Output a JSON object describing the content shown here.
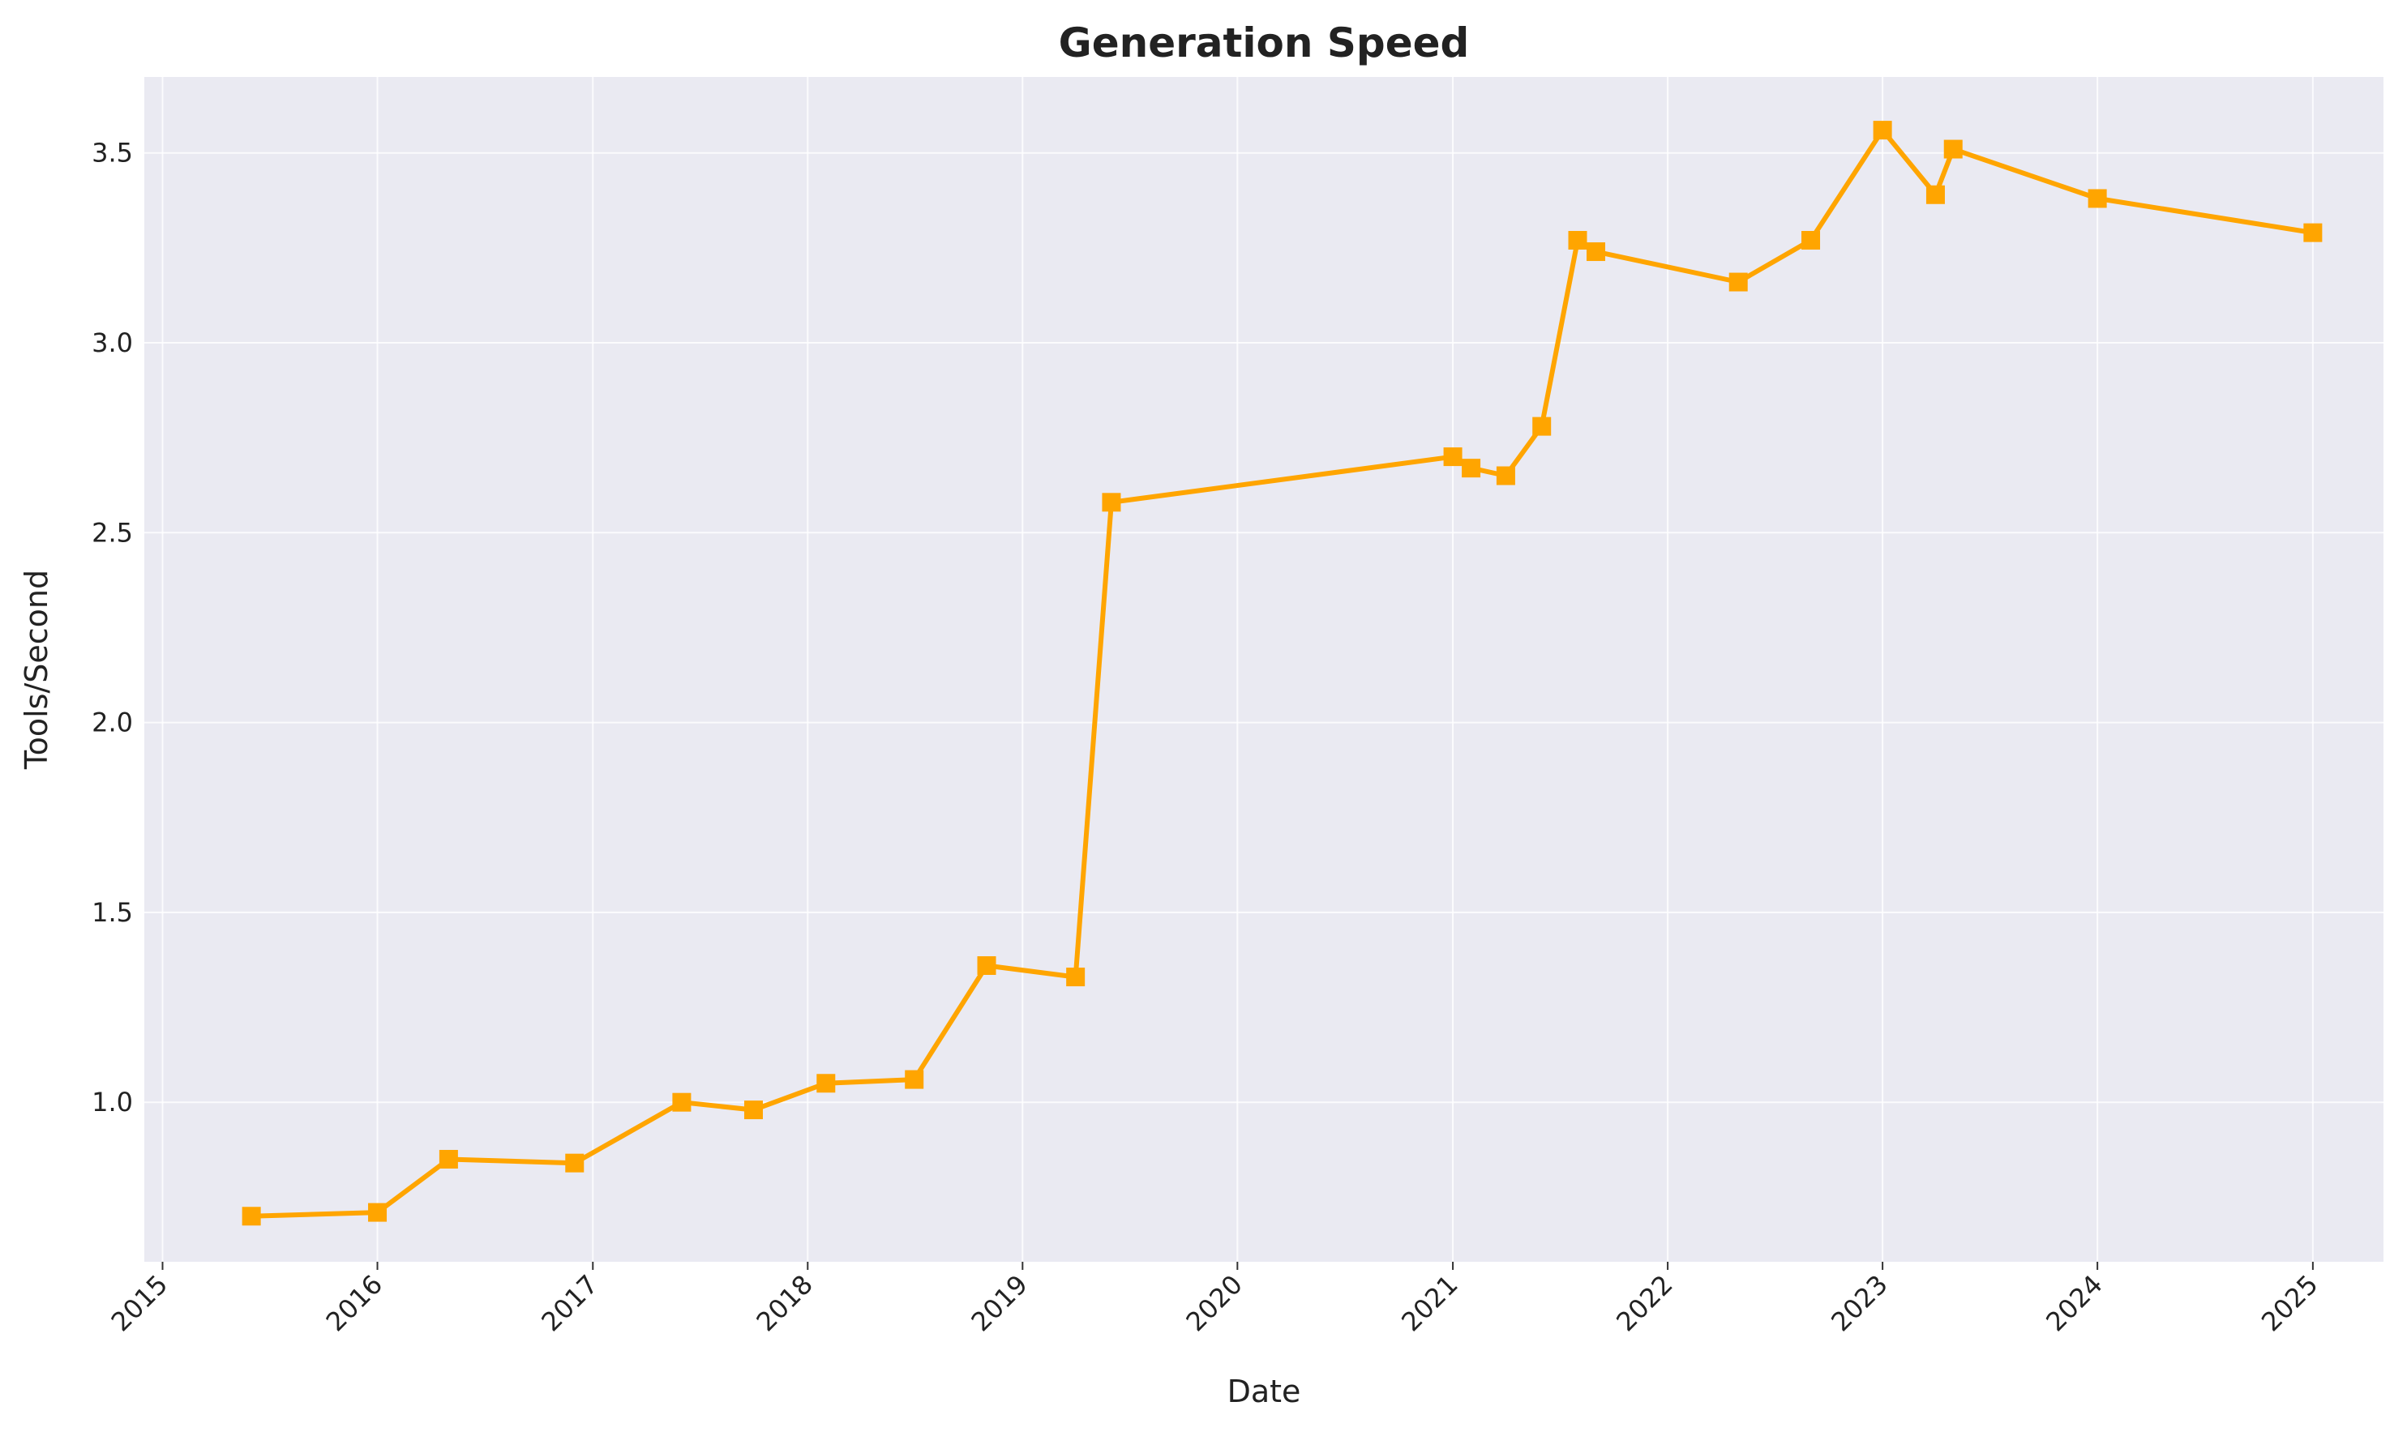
{
  "chart_data": {
    "type": "line",
    "title": "Generation Speed",
    "xlabel": "Date",
    "ylabel": "Tools/Second",
    "x_ticks": [
      "2015",
      "2016",
      "2017",
      "2018",
      "2019",
      "2020",
      "2021",
      "2022",
      "2023",
      "2024",
      "2025"
    ],
    "y_ticks": [
      "1.0",
      "1.5",
      "2.0",
      "2.5",
      "3.0",
      "3.5"
    ],
    "xlim": [
      "2014-12-01",
      "2025-05-01"
    ],
    "ylim": [
      0.58,
      3.7
    ],
    "grid": true,
    "colors": {
      "line": "#FFA500",
      "background": "#EAEAF2",
      "grid": "#FFFFFF"
    },
    "series": [
      {
        "marker": "square",
        "x": [
          "2015-06-01",
          "2016-01-01",
          "2016-05-01",
          "2016-12-01",
          "2017-06-01",
          "2017-10-01",
          "2018-02-01",
          "2018-07-01",
          "2018-11-01",
          "2019-04-01",
          "2019-06-01",
          "2021-01-01",
          "2021-02-01",
          "2021-04-01",
          "2021-06-01",
          "2021-08-01",
          "2021-09-01",
          "2022-05-01",
          "2022-09-01",
          "2023-01-01",
          "2023-04-01",
          "2023-05-01",
          "2024-01-01",
          "2025-01-01"
        ],
        "y": [
          0.7,
          0.71,
          0.85,
          0.84,
          1.0,
          0.98,
          1.05,
          1.06,
          1.36,
          1.33,
          2.58,
          2.7,
          2.67,
          2.65,
          2.78,
          3.27,
          3.24,
          3.16,
          3.27,
          3.56,
          3.39,
          3.51,
          3.38,
          3.29
        ]
      }
    ]
  }
}
